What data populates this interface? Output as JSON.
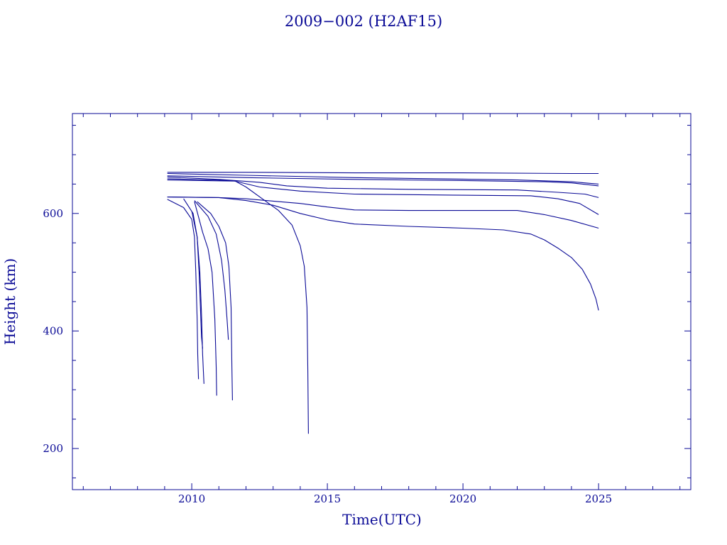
{
  "chart_data": {
    "type": "line",
    "title": "2009−002 (H2AF15)",
    "xlabel": "Time(UTC)",
    "ylabel": "Height (km)",
    "xlim": [
      2005.6,
      2028.4
    ],
    "ylim": [
      130,
      770
    ],
    "x_major_ticks": [
      2010,
      2015,
      2020,
      2025
    ],
    "x_minor_ticks": [
      2006,
      2007,
      2008,
      2009,
      2011,
      2012,
      2013,
      2014,
      2016,
      2017,
      2018,
      2019,
      2021,
      2022,
      2023,
      2024,
      2026,
      2027,
      2028
    ],
    "y_major_ticks": [
      200,
      400,
      600
    ],
    "y_minor_ticks": [
      150,
      250,
      300,
      350,
      450,
      500,
      550,
      650,
      700,
      750
    ],
    "x_tick_labels": [
      "2010",
      "2015",
      "2020",
      "2025"
    ],
    "y_tick_labels": [
      "200",
      "400",
      "600"
    ],
    "grid": false,
    "legend": "none",
    "line_color": "#0a0a96",
    "series": [
      {
        "x": [
          2009.1,
          2012,
          2016,
          2020,
          2024,
          2025
        ],
        "y": [
          670,
          670,
          669,
          669,
          668,
          668
        ]
      },
      {
        "x": [
          2009.1,
          2012,
          2016,
          2019,
          2022,
          2024,
          2025
        ],
        "y": [
          668,
          665,
          661,
          659,
          657,
          654,
          650
        ]
      },
      {
        "x": [
          2009.1,
          2012,
          2016,
          2020,
          2023,
          2024,
          2025
        ],
        "y": [
          664,
          661,
          658,
          656,
          654,
          652,
          647
        ]
      },
      {
        "x": [
          2009.1,
          2011,
          2012.5,
          2013.5,
          2015,
          2018,
          2022,
          2023.5,
          2024.5,
          2025
        ],
        "y": [
          662,
          658,
          653,
          647,
          643,
          641,
          640,
          636,
          633,
          627
        ]
      },
      {
        "x": [
          2009.1,
          2011.5,
          2012.5,
          2014,
          2016,
          2020,
          2022.5,
          2023.5,
          2024.3,
          2025
        ],
        "y": [
          659,
          656,
          645,
          638,
          633,
          631,
          630,
          625,
          617,
          598
        ]
      },
      {
        "x": [
          2009.1,
          2011.6,
          2012,
          2012.6,
          2013.2,
          2013.7,
          2014.0,
          2014.15,
          2014.25,
          2014.28,
          2014.3
        ],
        "y": [
          657,
          655,
          645,
          625,
          605,
          580,
          545,
          510,
          440,
          330,
          225
        ]
      },
      {
        "x": [
          2009.1,
          2011,
          2012,
          2013,
          2014,
          2015,
          2016,
          2018,
          2020,
          2022,
          2023,
          2024,
          2025
        ],
        "y": [
          628,
          627,
          625,
          621,
          617,
          611,
          606,
          605,
          605,
          605,
          598,
          588,
          575
        ]
      },
      {
        "x": [
          2009.1,
          2011,
          2012,
          2013,
          2014,
          2015,
          2016,
          2018,
          2020,
          2021.5,
          2022.5,
          2023,
          2023.5,
          2024,
          2024.4,
          2024.7,
          2024.9,
          2025
        ],
        "y": [
          628,
          627,
          622,
          614,
          600,
          589,
          582,
          578,
          575,
          572,
          565,
          555,
          541,
          525,
          505,
          480,
          455,
          435
        ]
      },
      {
        "x": [
          2009.1,
          2009.7,
          2010.0,
          2010.1,
          2010.15,
          2010.2,
          2010.22,
          2010.25
        ],
        "y": [
          624,
          610,
          590,
          560,
          500,
          420,
          360,
          318
        ]
      },
      {
        "x": [
          2009.7,
          2010.05,
          2010.2,
          2010.3,
          2010.36,
          2010.4,
          2010.45
        ],
        "y": [
          625,
          600,
          560,
          500,
          430,
          360,
          310
        ]
      },
      {
        "x": [
          2010.0,
          2010.2,
          2010.27,
          2010.32,
          2010.36,
          2010.4
        ],
        "y": [
          604,
          560,
          500,
          440,
          390,
          370
        ]
      },
      {
        "x": [
          2010.1,
          2010.4,
          2010.6,
          2010.75,
          2010.85,
          2010.9,
          2010.92
        ],
        "y": [
          620,
          568,
          540,
          500,
          420,
          340,
          290
        ]
      },
      {
        "x": [
          2010.1,
          2010.6,
          2010.9,
          2011.1,
          2011.22,
          2011.3,
          2011.35
        ],
        "y": [
          622,
          595,
          565,
          520,
          470,
          420,
          385
        ]
      },
      {
        "x": [
          2010.2,
          2010.7,
          2011.0,
          2011.25,
          2011.37,
          2011.45,
          2011.48,
          2011.5
        ],
        "y": [
          620,
          600,
          578,
          550,
          510,
          440,
          340,
          282
        ]
      }
    ]
  }
}
